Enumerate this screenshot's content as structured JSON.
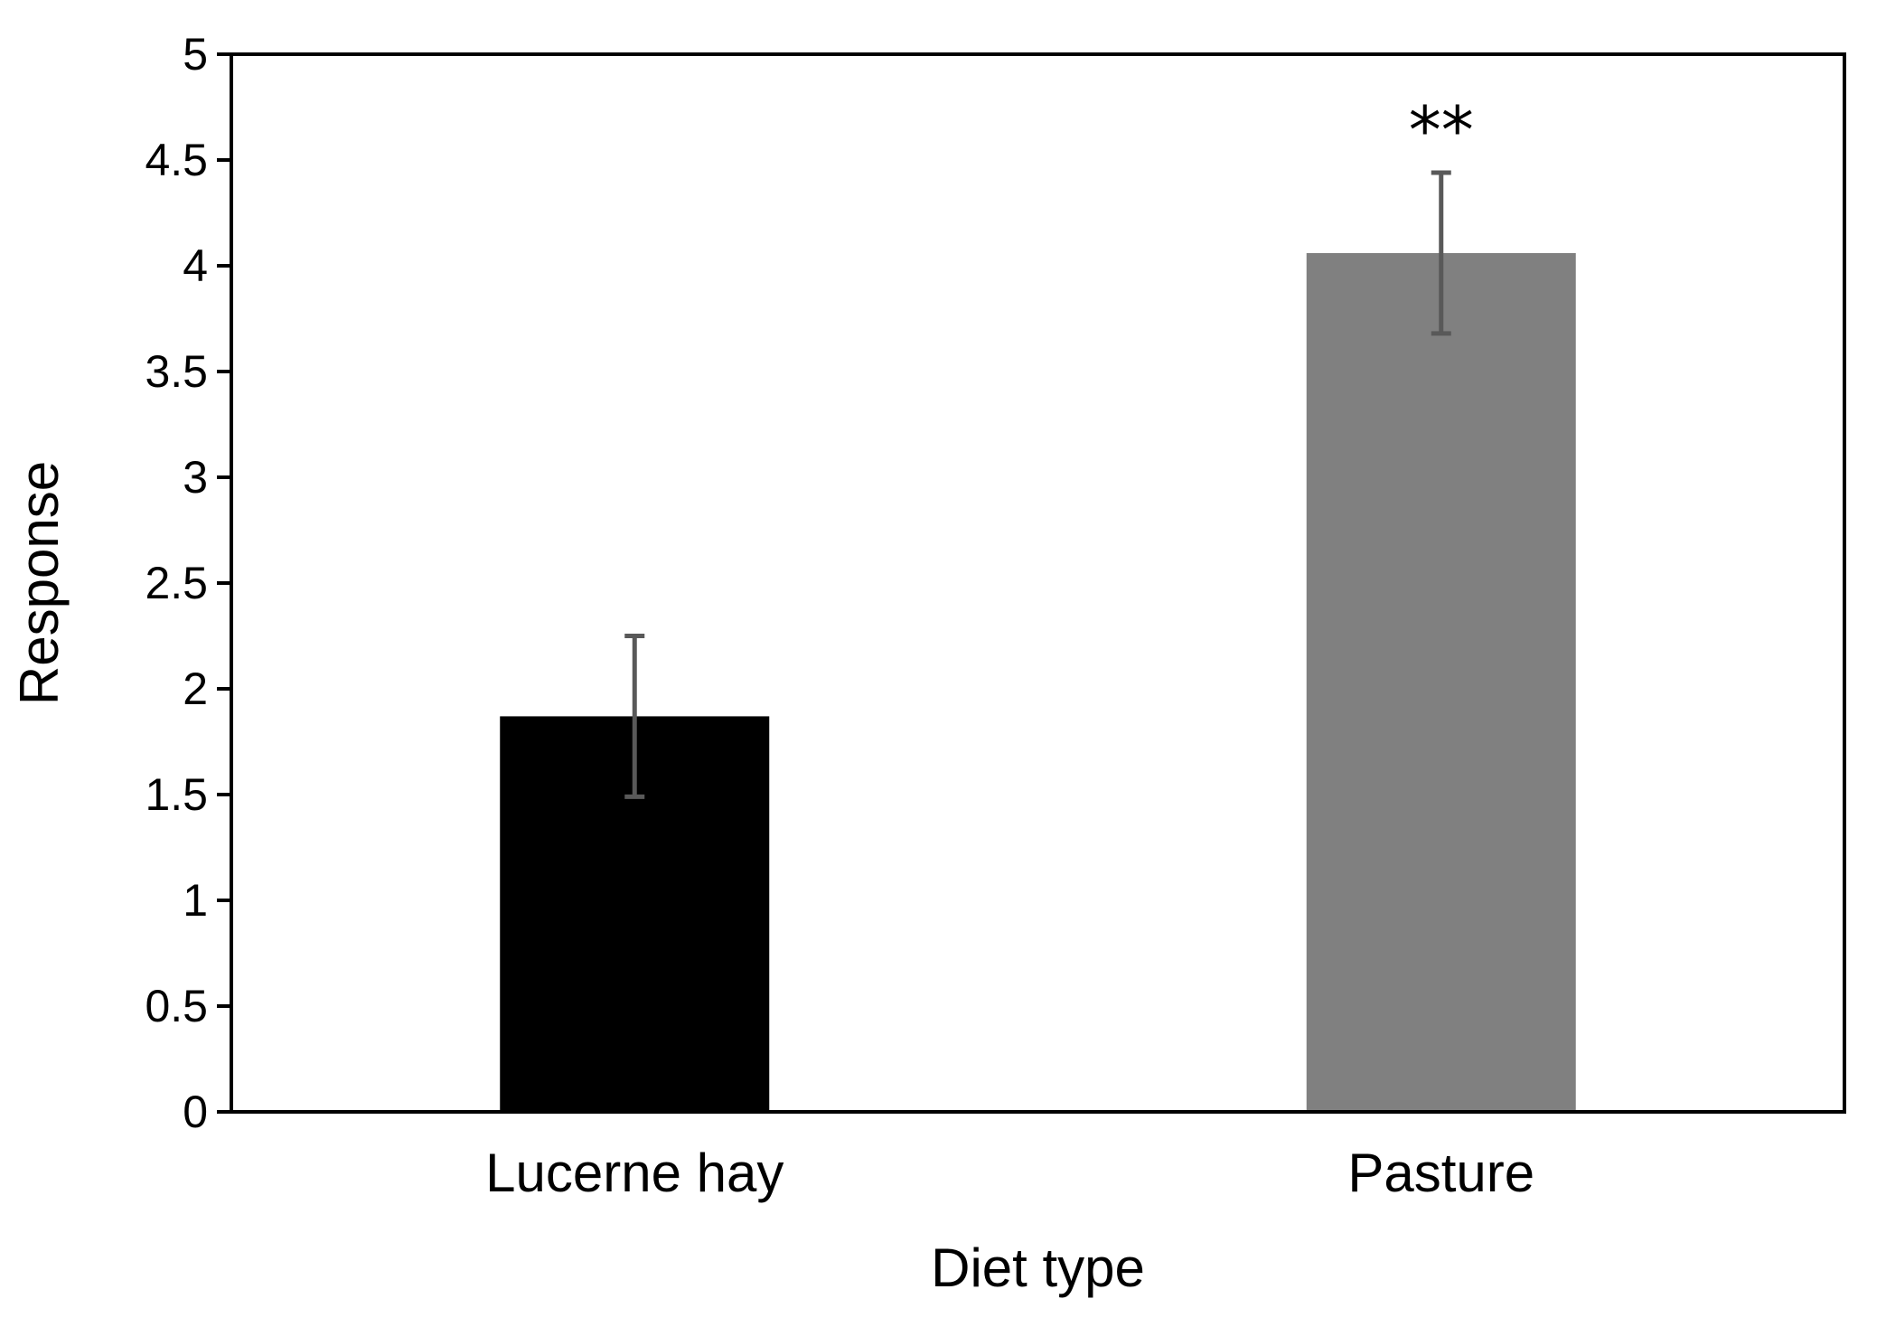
{
  "chart_data": {
    "type": "bar",
    "categories": [
      "Lucerne hay",
      "Pasture"
    ],
    "values": [
      1.87,
      4.06
    ],
    "error": [
      0.38,
      0.38
    ],
    "bar_colors": [
      "#000000",
      "#808080"
    ],
    "error_bar_color": "#595959",
    "annotations": [
      "",
      "**"
    ],
    "xlabel": "Diet type",
    "ylabel": "Response",
    "ylim": [
      0,
      5
    ],
    "yticks": [
      0,
      0.5,
      1,
      1.5,
      2,
      2.5,
      3,
      3.5,
      4,
      4.5,
      5
    ],
    "ytick_labels": [
      "0",
      "0.5",
      "1",
      "1.5",
      "2",
      "2.5",
      "3",
      "3.5",
      "4",
      "4.5",
      "5"
    ],
    "grid": false,
    "legend": "none"
  }
}
